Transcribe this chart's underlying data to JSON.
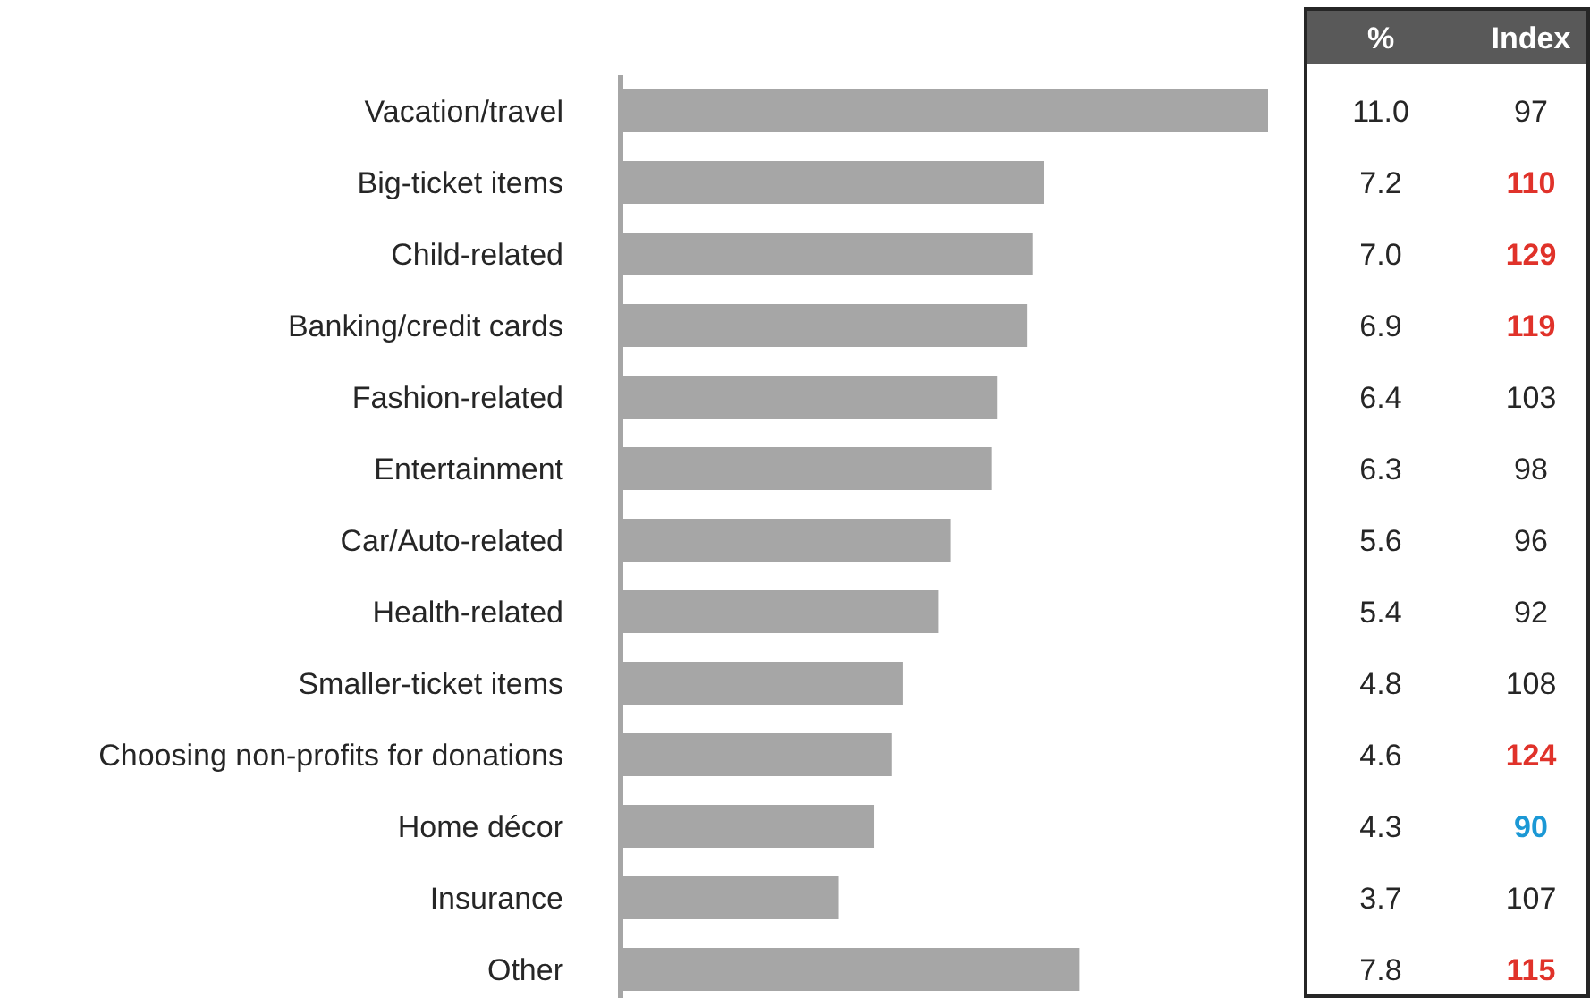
{
  "chart_data": [
    {
      "type": "bar",
      "orientation": "horizontal",
      "categories": [
        "Vacation/travel",
        "Big-ticket items",
        "Child-related",
        "Banking/credit cards",
        "Fashion-related",
        "Entertainment",
        "Car/Auto-related",
        "Health-related",
        "Smaller-ticket items",
        "Choosing non-profits for donations",
        "Home décor",
        "Insurance",
        "Other"
      ],
      "series": [
        {
          "name": "%",
          "color": "#a6a6a6",
          "values": [
            11.0,
            7.2,
            7.0,
            6.9,
            6.4,
            6.3,
            5.6,
            5.4,
            4.8,
            4.6,
            4.3,
            3.7,
            7.8
          ],
          "value_labels": [
            "11.0",
            "7.2",
            "7.0",
            "6.9",
            "6.4",
            "6.3",
            "5.6",
            "5.4",
            "4.8",
            "4.6",
            "4.3",
            "3.7",
            "7.8"
          ]
        }
      ]
    },
    {
      "type": "other",
      "title": "Index",
      "data_labels": true,
      "values": [
        97,
        110,
        129,
        119,
        103,
        98,
        96,
        92,
        108,
        124,
        90,
        107,
        115
      ],
      "colors": [
        "#262626",
        "#e0322a",
        "#e0322a",
        "#e0322a",
        "#262626",
        "#262626",
        "#262626",
        "#262626",
        "#262626",
        "#e0322a",
        "#1b98d5",
        "#262626",
        "#e0322a"
      ]
    }
  ]
}
